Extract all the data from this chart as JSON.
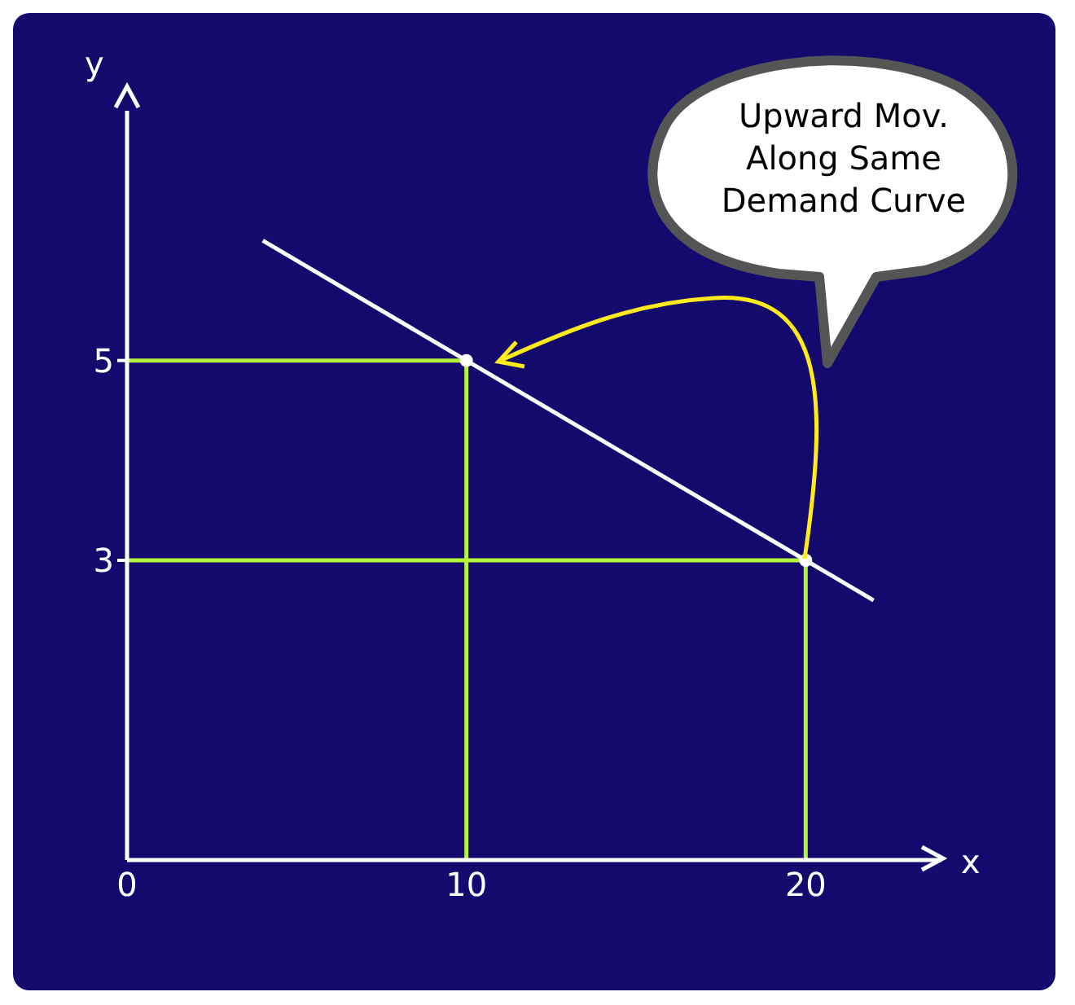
{
  "chart_data": {
    "type": "line",
    "xlabel": "x",
    "ylabel": "y",
    "annotations": [
      "Upward Mov. Along Same Demand Curve"
    ],
    "xlim": [
      0,
      24
    ],
    "ylim": [
      0,
      7.5
    ],
    "xticks": [
      0,
      10,
      20
    ],
    "yticks": [
      3,
      5
    ],
    "grid": false,
    "series": [
      {
        "color": "#ffffff",
        "x": [
          4,
          10,
          20,
          22
        ],
        "values": [
          6.2,
          5,
          3,
          2.6
        ]
      },
      {
        "color": "#b5f23c",
        "x": [
          0,
          10,
          10
        ],
        "values": [
          5,
          5,
          0
        ]
      },
      {
        "color": "#b5f23c",
        "x": [
          0,
          20,
          20
        ],
        "values": [
          3,
          3,
          0
        ]
      },
      {
        "type": "scatter",
        "color": "#ffffff",
        "marker": "circle",
        "x": [
          10,
          20
        ],
        "values": [
          5,
          3
        ]
      }
    ]
  }
}
